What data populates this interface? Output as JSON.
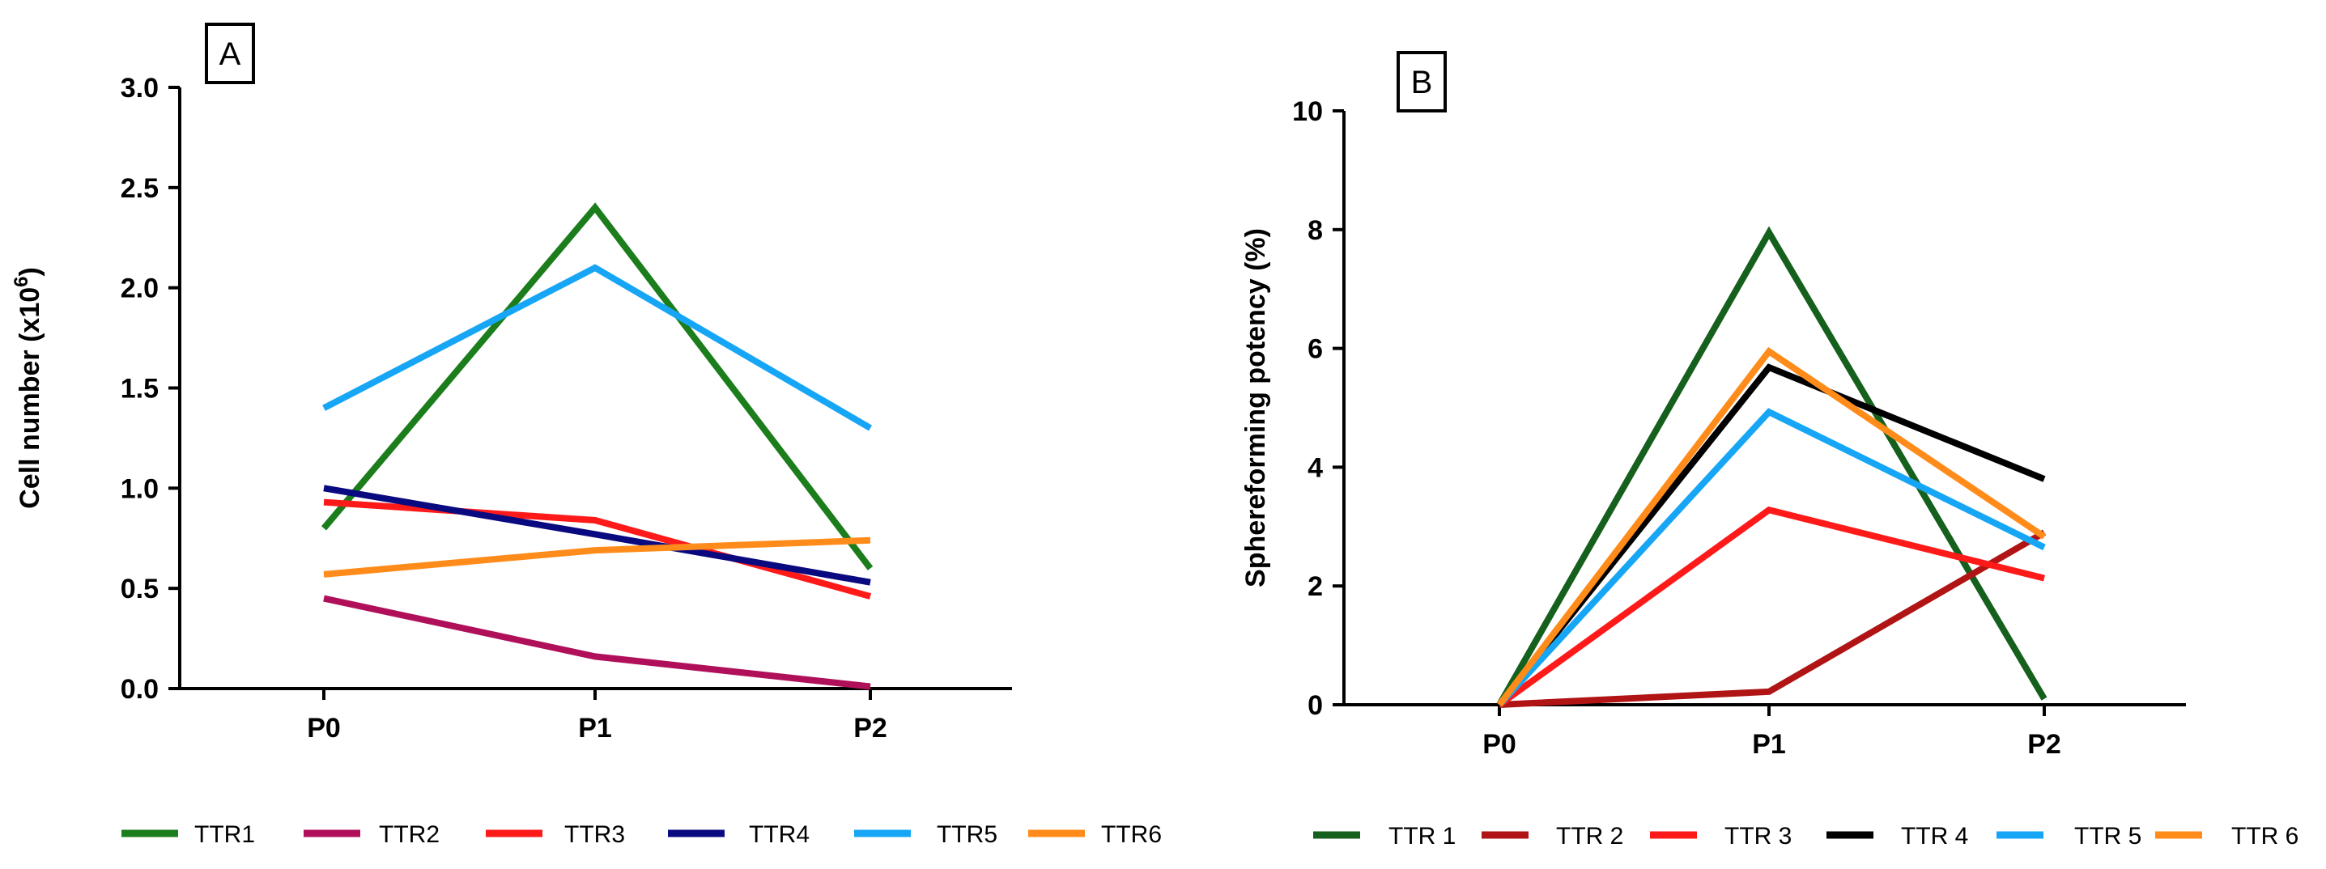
{
  "chart_data": [
    {
      "type": "line",
      "panel_label": "A",
      "categories": [
        "P0",
        "P1",
        "P2"
      ],
      "ylabel": "Cell number (x10",
      "ylabel_exponent": "6",
      "ylabel_suffix": ")",
      "ylim": [
        0,
        3.0
      ],
      "yticks": [
        "0.0",
        "0.5",
        "1.0",
        "1.5",
        "2.0",
        "2.5",
        "3.0"
      ],
      "grid": false,
      "legend_position": "bottom",
      "series": [
        {
          "name": "TTR1",
          "color": "#1b7d1b",
          "values": [
            0.8,
            2.4,
            0.6
          ]
        },
        {
          "name": "TTR2",
          "color": "#b0105a",
          "values": [
            0.45,
            0.16,
            0.01
          ]
        },
        {
          "name": "TTR3",
          "color": "#ff1a1a",
          "values": [
            0.93,
            0.84,
            0.46
          ]
        },
        {
          "name": "TTR4",
          "color": "#0a0a80",
          "values": [
            1.0,
            0.77,
            0.53
          ]
        },
        {
          "name": "TTR5",
          "color": "#17a6f5",
          "values": [
            1.4,
            2.1,
            1.3
          ]
        },
        {
          "name": "TTR6",
          "color": "#ff8c1a",
          "values": [
            0.57,
            0.69,
            0.74
          ]
        }
      ]
    },
    {
      "type": "line",
      "panel_label": "B",
      "categories": [
        "P0",
        "P1",
        "P2"
      ],
      "ylabel": "Sphereforming potency (%)",
      "ylim": [
        0,
        10
      ],
      "yticks": [
        "0",
        "2",
        "4",
        "6",
        "8",
        "10"
      ],
      "grid": false,
      "legend_position": "bottom",
      "series": [
        {
          "name": "TTR 1",
          "color": "#14601c",
          "values": [
            0,
            7.95,
            0.1
          ]
        },
        {
          "name": "TTR 2",
          "color": "#b01414",
          "values": [
            0,
            0.22,
            2.9
          ]
        },
        {
          "name": "TTR 3",
          "color": "#ff1a1a",
          "values": [
            0,
            3.28,
            2.13
          ]
        },
        {
          "name": "TTR 4",
          "color": "#000000",
          "values": [
            0,
            5.68,
            3.8
          ]
        },
        {
          "name": "TTR 5",
          "color": "#17a6f5",
          "values": [
            0,
            4.93,
            2.65
          ]
        },
        {
          "name": "TTR 6",
          "color": "#ff8c1a",
          "values": [
            0,
            5.95,
            2.83
          ]
        }
      ]
    }
  ]
}
